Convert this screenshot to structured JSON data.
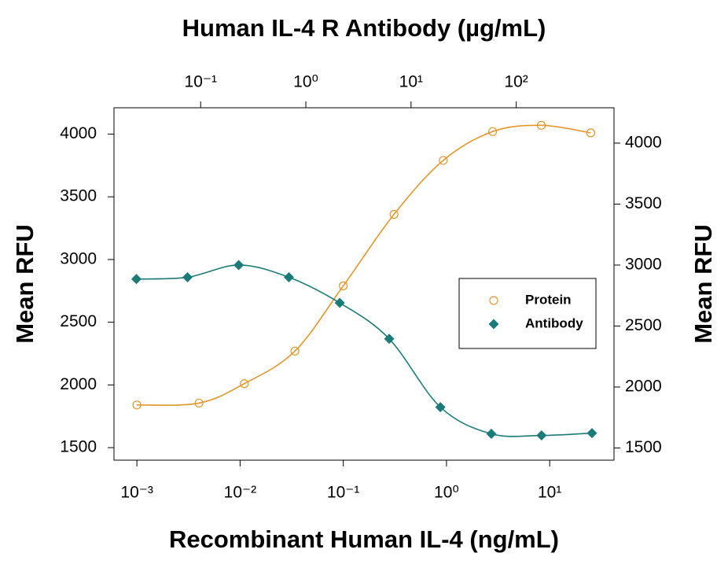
{
  "chart_data": {
    "type": "line",
    "title": "Human IL-4 R Antibody (µg/mL)",
    "x_label": "Recombinant Human IL-4 (ng/mL)",
    "y_label": "Mean RFU",
    "y2_label": "Mean RFU",
    "xscale": "log",
    "x2scale": "log",
    "xlim": [
      0.0006,
      42
    ],
    "xticks": [
      {
        "value": 0.001,
        "label": "10⁻³"
      },
      {
        "value": 0.01,
        "label": "10⁻²"
      },
      {
        "value": 0.1,
        "label": "10⁻¹"
      },
      {
        "value": 1,
        "label": "10⁰"
      },
      {
        "value": 10,
        "label": "10¹"
      }
    ],
    "x2lim": [
      0.015,
      850
    ],
    "x2ticks": [
      {
        "value": 0.1,
        "label": "10⁻¹"
      },
      {
        "value": 1,
        "label": "10⁰"
      },
      {
        "value": 10,
        "label": "10¹"
      },
      {
        "value": 100,
        "label": "10²"
      }
    ],
    "ylim": [
      1400,
      4210
    ],
    "yticks": [
      1500,
      2000,
      2500,
      3000,
      3500,
      4000
    ],
    "y2lim": [
      1400,
      4290
    ],
    "y2ticks": [
      1500,
      2000,
      2500,
      3000,
      3500,
      4000
    ],
    "legend": "right",
    "series": [
      {
        "name": "Protein",
        "color": "#e3962a",
        "marker": "circle",
        "x": [
          0.001,
          0.004,
          0.011,
          0.034,
          0.1,
          0.31,
          0.93,
          2.8,
          8.3,
          25
        ],
        "values": [
          1840,
          1855,
          2010,
          2270,
          2790,
          3360,
          3790,
          4020,
          4070,
          4010
        ]
      },
      {
        "name": "Antibody",
        "color": "#1b7b78",
        "marker": "diamond",
        "xaxis": "x2",
        "axis": "y2",
        "x": [
          0.0245,
          0.075,
          0.23,
          0.69,
          2.1,
          6.2,
          19,
          58,
          174,
          525
        ],
        "values": [
          2885,
          2900,
          3000,
          2900,
          2690,
          2395,
          1835,
          1616,
          1603,
          1622
        ]
      }
    ]
  }
}
